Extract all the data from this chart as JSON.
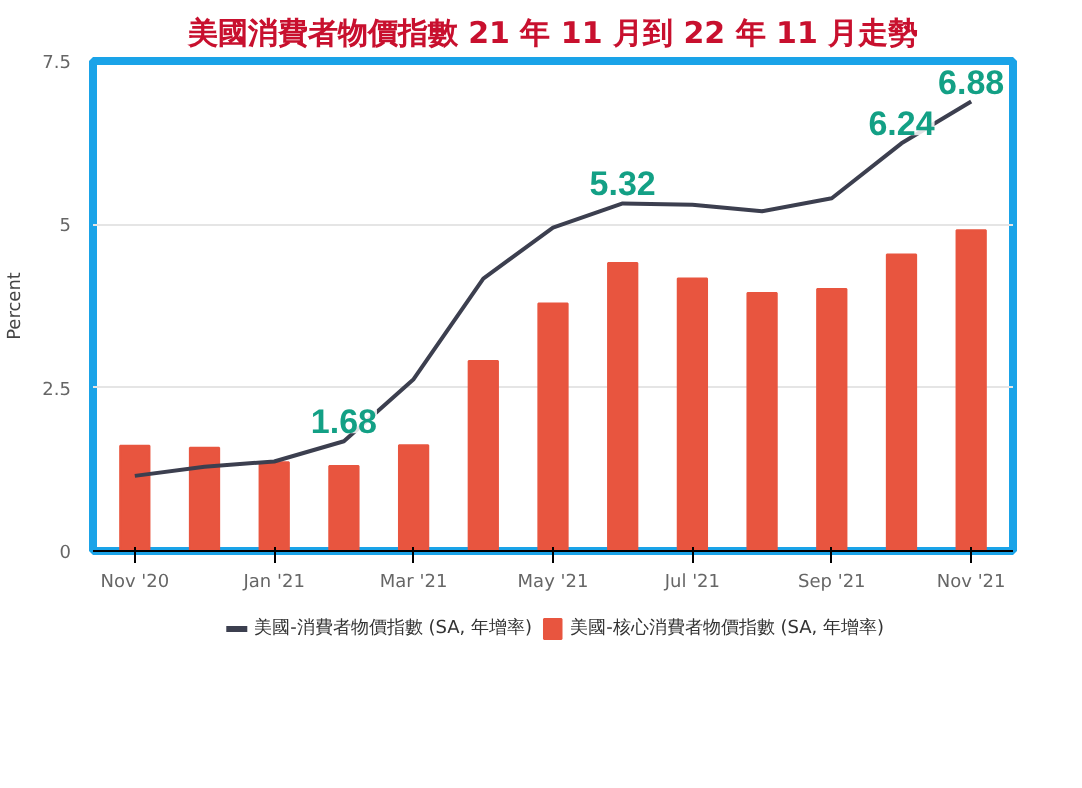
{
  "chart_data": {
    "type": "bar",
    "title": "美國消費者物價指數 21 年 11 月到 22 年 11 月走勢",
    "ylabel": "Percent",
    "categories": [
      "Nov '20",
      null,
      "Jan '21",
      null,
      "Mar '21",
      null,
      "May '21",
      null,
      "Jul '21",
      null,
      "Sep '21",
      null,
      "Nov '21"
    ],
    "series": [
      {
        "name": "美國-消費者物價指數 (SA, 年增率)",
        "type": "line",
        "color": "#3c3f4f",
        "values": [
          1.15,
          1.29,
          1.37,
          1.68,
          2.63,
          4.17,
          4.95,
          5.32,
          5.3,
          5.2,
          5.4,
          6.24,
          6.88
        ],
        "value_labels": [
          null,
          null,
          null,
          "1.68",
          null,
          null,
          null,
          "5.32",
          null,
          null,
          null,
          "6.24",
          "6.88"
        ]
      },
      {
        "name": "美國-核心消費者物價指數 (SA, 年增率)",
        "color": "#e8553f",
        "values": [
          1.61,
          1.58,
          1.36,
          1.3,
          1.62,
          2.91,
          3.79,
          4.41,
          4.17,
          3.95,
          4.01,
          4.54,
          4.91
        ]
      }
    ],
    "ylim": [
      0,
      7.5
    ],
    "yticks": [
      0,
      2.5,
      5,
      7.5
    ],
    "grid": "y",
    "legend": "bottom"
  }
}
